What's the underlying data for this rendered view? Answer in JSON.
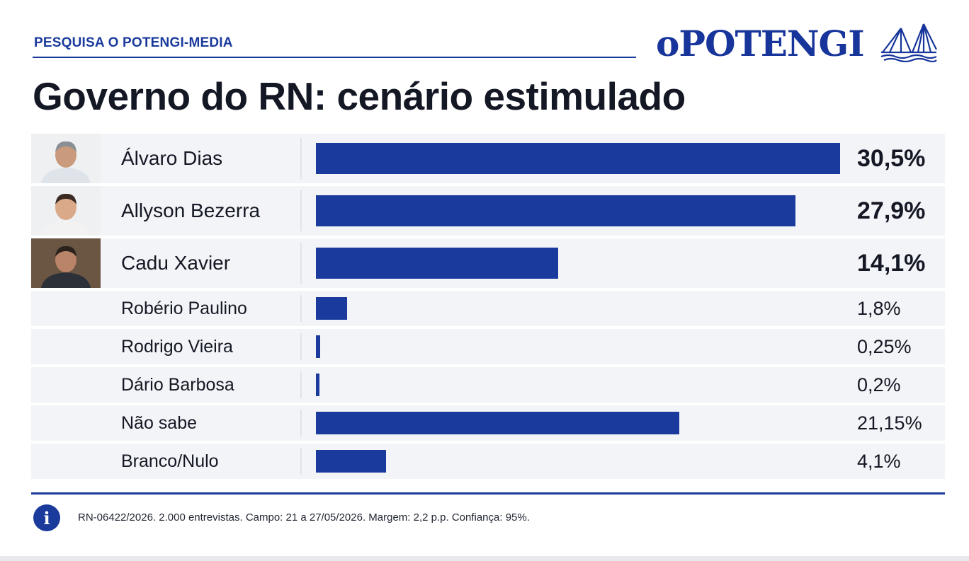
{
  "header": {
    "kicker": "PESQUISA O POTENGI-MEDIA",
    "logo_text": "oPOTENGI",
    "logo_icon": "bridge-icon",
    "title": "Governo do RN: cenário estimulado"
  },
  "colors": {
    "accent": "#1a3a9c",
    "bar": "#1a3a9e",
    "row_bg": "#f3f4f7"
  },
  "chart_data": {
    "type": "bar",
    "orientation": "horizontal",
    "title": "Governo do RN: cenário estimulado",
    "xlim": [
      0,
      30.5
    ],
    "categories": [
      "Álvaro Dias",
      "Allyson Bezerra",
      "Cadu Xavier",
      "Robério Paulino",
      "Rodrigo Vieira",
      "Dário Barbosa",
      "Não sabe",
      "Branco/Nulo"
    ],
    "values": [
      30.5,
      27.9,
      14.1,
      1.8,
      0.25,
      0.2,
      21.15,
      4.1
    ],
    "value_labels": [
      "30,5%",
      "27,9%",
      "14,1%",
      "1,8%",
      "0,25%",
      "0,2%",
      "21,15%",
      "4,1%"
    ],
    "has_photo": [
      true,
      true,
      true,
      false,
      false,
      false,
      false,
      false
    ],
    "grid": false
  },
  "footer": {
    "info_icon": "info-icon",
    "note": "RN-06422/2026. 2.000 entrevistas. Campo: 21 a 27/05/2026. Margem: 2,2 p.p. Confiança: 95%."
  }
}
